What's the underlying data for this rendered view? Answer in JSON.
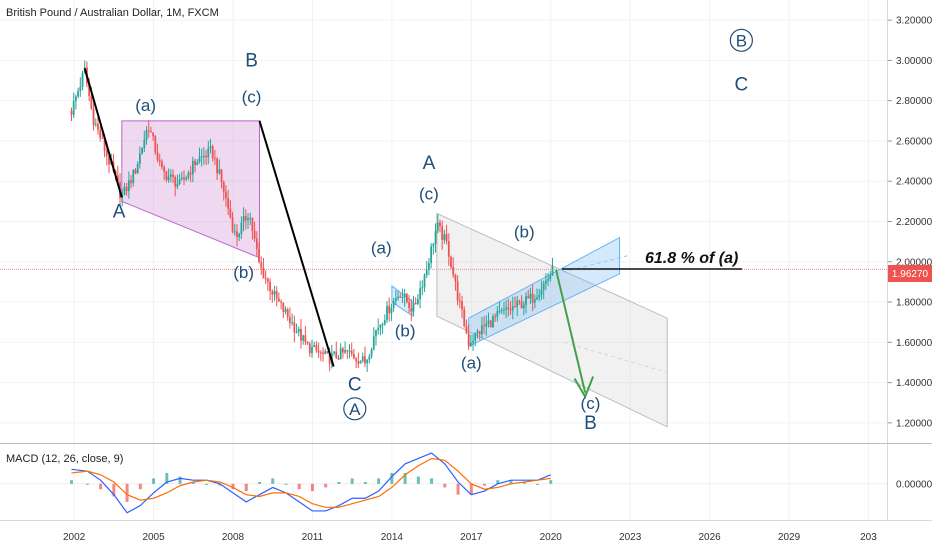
{
  "chart_data": [
    {
      "type": "candlestick",
      "title": "British Pound / Australian Dollar, 1M, FXCM",
      "y_ticks": [
        "1.20000",
        "1.40000",
        "1.60000",
        "1.80000",
        "2.00000",
        "2.20000",
        "2.40000",
        "2.60000",
        "2.80000",
        "3.00000",
        "3.20000"
      ],
      "x_ticks": [
        "2002",
        "2005",
        "2008",
        "2011",
        "2014",
        "2017",
        "2020",
        "2023",
        "2026",
        "2029",
        "203"
      ],
      "ylim": [
        1.1,
        3.3
      ],
      "xlim": [
        1999.2,
        2032.7
      ],
      "current_price": 1.9627,
      "current_price_label": "1.96270",
      "series": [
        {
          "x": 2001.9,
          "close": 2.75
        },
        {
          "x": 2002.4,
          "close": 2.95
        },
        {
          "x": 2002.7,
          "close": 2.72
        },
        {
          "x": 2003.1,
          "close": 2.58
        },
        {
          "x": 2003.8,
          "close": 2.32
        },
        {
          "x": 2004.3,
          "close": 2.45
        },
        {
          "x": 2004.8,
          "close": 2.68
        },
        {
          "x": 2005.3,
          "close": 2.45
        },
        {
          "x": 2006.0,
          "close": 2.38
        },
        {
          "x": 2006.6,
          "close": 2.5
        },
        {
          "x": 2007.2,
          "close": 2.55
        },
        {
          "x": 2007.6,
          "close": 2.38
        },
        {
          "x": 2008.1,
          "close": 2.12
        },
        {
          "x": 2008.6,
          "close": 2.25
        },
        {
          "x": 2009.0,
          "close": 1.98
        },
        {
          "x": 2009.6,
          "close": 1.82
        },
        {
          "x": 2010.2,
          "close": 1.7
        },
        {
          "x": 2010.8,
          "close": 1.58
        },
        {
          "x": 2011.6,
          "close": 1.52
        },
        {
          "x": 2012.3,
          "close": 1.55
        },
        {
          "x": 2013.0,
          "close": 1.5
        },
        {
          "x": 2013.4,
          "close": 1.66
        },
        {
          "x": 2013.8,
          "close": 1.75
        },
        {
          "x": 2014.3,
          "close": 1.85
        },
        {
          "x": 2014.8,
          "close": 1.76
        },
        {
          "x": 2015.3,
          "close": 1.96
        },
        {
          "x": 2015.7,
          "close": 2.18
        },
        {
          "x": 2016.1,
          "close": 2.08
        },
        {
          "x": 2016.5,
          "close": 1.82
        },
        {
          "x": 2016.9,
          "close": 1.6
        },
        {
          "x": 2017.5,
          "close": 1.68
        },
        {
          "x": 2018.1,
          "close": 1.74
        },
        {
          "x": 2018.7,
          "close": 1.78
        },
        {
          "x": 2019.3,
          "close": 1.82
        },
        {
          "x": 2019.8,
          "close": 1.9
        },
        {
          "x": 2020.1,
          "close": 1.96
        }
      ]
    },
    {
      "type": "macd",
      "label": "MACD (12, 26, close, 9)",
      "y_tick": "0.00000",
      "x": [
        2001.9,
        2002.5,
        2003.0,
        2003.5,
        2004.0,
        2004.5,
        2005.0,
        2005.5,
        2006.0,
        2006.5,
        2007.0,
        2007.5,
        2008.0,
        2008.5,
        2009.0,
        2009.5,
        2010.0,
        2010.5,
        2011.0,
        2011.5,
        2012.0,
        2012.5,
        2013.0,
        2013.5,
        2014.0,
        2014.5,
        2015.0,
        2015.5,
        2016.0,
        2016.5,
        2017.0,
        2017.5,
        2018.0,
        2018.5,
        2019.0,
        2019.5,
        2020.0
      ],
      "macd": [
        0.08,
        0.07,
        0.02,
        -0.06,
        -0.16,
        -0.12,
        -0.05,
        0.01,
        0.03,
        0.02,
        0.02,
        0.0,
        -0.05,
        -0.1,
        -0.06,
        -0.02,
        -0.05,
        -0.1,
        -0.15,
        -0.15,
        -0.12,
        -0.08,
        -0.08,
        -0.04,
        0.04,
        0.11,
        0.14,
        0.17,
        0.11,
        0.01,
        -0.06,
        -0.04,
        0.0,
        0.02,
        0.02,
        0.02,
        0.05
      ],
      "signal": [
        0.06,
        0.07,
        0.05,
        0.01,
        -0.06,
        -0.09,
        -0.08,
        -0.05,
        -0.01,
        0.01,
        0.02,
        0.01,
        -0.02,
        -0.06,
        -0.07,
        -0.05,
        -0.05,
        -0.07,
        -0.11,
        -0.13,
        -0.13,
        -0.11,
        -0.09,
        -0.07,
        -0.02,
        0.05,
        0.1,
        0.14,
        0.13,
        0.07,
        0.0,
        -0.03,
        -0.02,
        0.0,
        0.01,
        0.02,
        0.03
      ],
      "ylim": [
        -0.2,
        0.22
      ]
    }
  ],
  "annotations": {
    "labels": [
      {
        "text": "(a)",
        "x": 2004.7,
        "y": 2.75,
        "size": 17
      },
      {
        "text": "A",
        "x": 2003.7,
        "y": 2.22,
        "size": 19
      },
      {
        "text": "B",
        "x": 2008.7,
        "y": 2.97,
        "size": 19
      },
      {
        "text": "(c)",
        "x": 2008.7,
        "y": 2.79,
        "size": 17
      },
      {
        "text": "(b)",
        "x": 2008.4,
        "y": 1.92,
        "size": 17
      },
      {
        "text": "C",
        "x": 2012.6,
        "y": 1.36,
        "size": 19
      },
      {
        "text": "(a)",
        "x": 2013.6,
        "y": 2.04,
        "size": 17
      },
      {
        "text": "(b)",
        "x": 2014.5,
        "y": 1.63,
        "size": 17
      },
      {
        "text": "A",
        "x": 2015.4,
        "y": 2.46,
        "size": 19
      },
      {
        "text": "(c)",
        "x": 2015.4,
        "y": 2.31,
        "size": 17
      },
      {
        "text": "(a)",
        "x": 2017.0,
        "y": 1.47,
        "size": 17
      },
      {
        "text": "(b)",
        "x": 2019.0,
        "y": 2.12,
        "size": 17
      },
      {
        "text": "(c)",
        "x": 2021.5,
        "y": 1.27,
        "size": 17
      },
      {
        "text": "B",
        "x": 2021.5,
        "y": 1.17,
        "size": 19
      },
      {
        "text": "C",
        "x": 2027.2,
        "y": 2.85,
        "size": 19
      }
    ],
    "circled_labels": [
      {
        "text": "A",
        "x": 2012.6,
        "y": 1.24
      },
      {
        "text": "B",
        "x": 2027.2,
        "y": 3.07
      }
    ],
    "fib_note": "61.8 % of (a)"
  }
}
